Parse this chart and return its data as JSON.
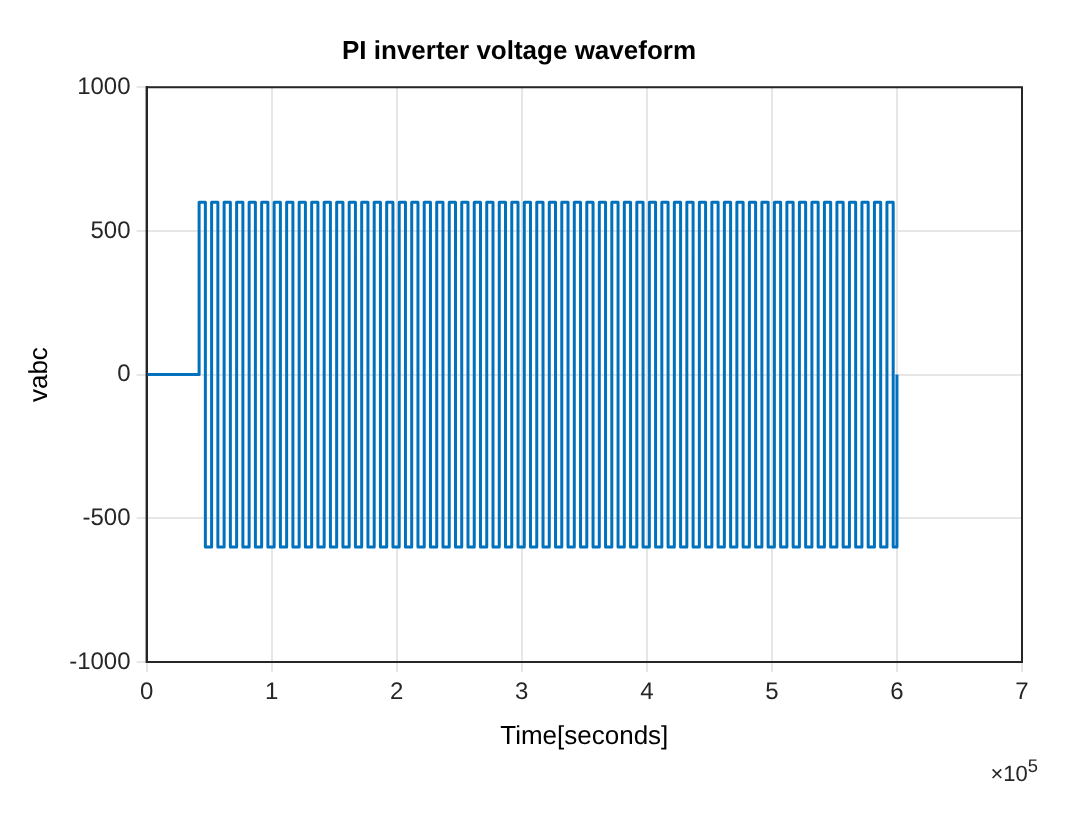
{
  "chart_data": {
    "type": "step",
    "title": "PI inverter voltage waveform",
    "xlabel": "Time[seconds]",
    "ylabel": "vabc",
    "annotations": [
      "×10$^{5}$"
    ],
    "xlim": [
      0,
      7
    ],
    "xticks": [
      0,
      1,
      2,
      3,
      4,
      5,
      6,
      7
    ],
    "ylim": [
      -1000,
      1000
    ],
    "yticks": [
      -1000,
      -500,
      0,
      500,
      1000
    ],
    "grid": true,
    "series": [
      {
        "color": "#0072bd",
        "x": [
          0,
          0.42,
          0.47,
          0.52,
          0.57,
          0.62,
          0.67,
          0.72,
          0.77,
          0.82,
          0.87,
          0.92,
          0.97,
          1.02,
          1.07,
          1.12,
          1.17,
          1.22,
          1.27,
          1.32,
          1.37,
          1.42,
          1.47,
          1.52,
          1.57,
          1.62,
          1.67,
          1.72,
          1.77,
          1.82,
          1.87,
          1.92,
          1.97,
          2.02,
          2.07,
          2.12,
          2.17,
          2.22,
          2.27,
          2.32,
          2.37,
          2.42,
          2.47,
          2.52,
          2.57,
          2.62,
          2.67,
          2.72,
          2.77,
          2.82,
          2.87,
          2.92,
          2.97,
          3.02,
          3.07,
          3.12,
          3.17,
          3.22,
          3.27,
          3.32,
          3.37,
          3.42,
          3.47,
          3.52,
          3.57,
          3.62,
          3.67,
          3.72,
          3.77,
          3.82,
          3.87,
          3.92,
          3.97,
          4.02,
          4.07,
          4.12,
          4.17,
          4.22,
          4.27,
          4.32,
          4.37,
          4.42,
          4.47,
          4.52,
          4.57,
          4.62,
          4.67,
          4.72,
          4.77,
          4.82,
          4.87,
          4.92,
          4.97,
          5.02,
          5.07,
          5.12,
          5.17,
          5.22,
          5.27,
          5.32,
          5.37,
          5.42,
          5.47,
          5.52,
          5.57,
          5.62,
          5.67,
          5.72,
          5.77,
          5.82,
          5.87,
          5.92,
          5.97,
          6
        ],
        "values": [
          0,
          600,
          -600,
          600,
          -600,
          600,
          -600,
          600,
          -600,
          600,
          -600,
          600,
          -600,
          600,
          -600,
          600,
          -600,
          600,
          -600,
          600,
          -600,
          600,
          -600,
          600,
          -600,
          600,
          -600,
          600,
          -600,
          600,
          -600,
          600,
          -600,
          600,
          -600,
          600,
          -600,
          600,
          -600,
          600,
          -600,
          600,
          -600,
          600,
          -600,
          600,
          -600,
          600,
          -600,
          600,
          -600,
          600,
          -600,
          600,
          -600,
          600,
          -600,
          600,
          -600,
          600,
          -600,
          600,
          -600,
          600,
          -600,
          600,
          -600,
          600,
          -600,
          600,
          -600,
          600,
          -600,
          600,
          -600,
          600,
          -600,
          600,
          -600,
          600,
          -600,
          600,
          -600,
          600,
          -600,
          600,
          -600,
          600,
          -600,
          600,
          -600,
          600,
          -600,
          600,
          -600,
          600,
          -600,
          600,
          -600,
          600,
          -600,
          600,
          -600,
          600,
          -600,
          600,
          -600,
          600,
          -600,
          600,
          -600,
          600,
          -600,
          0
        ]
      }
    ]
  }
}
